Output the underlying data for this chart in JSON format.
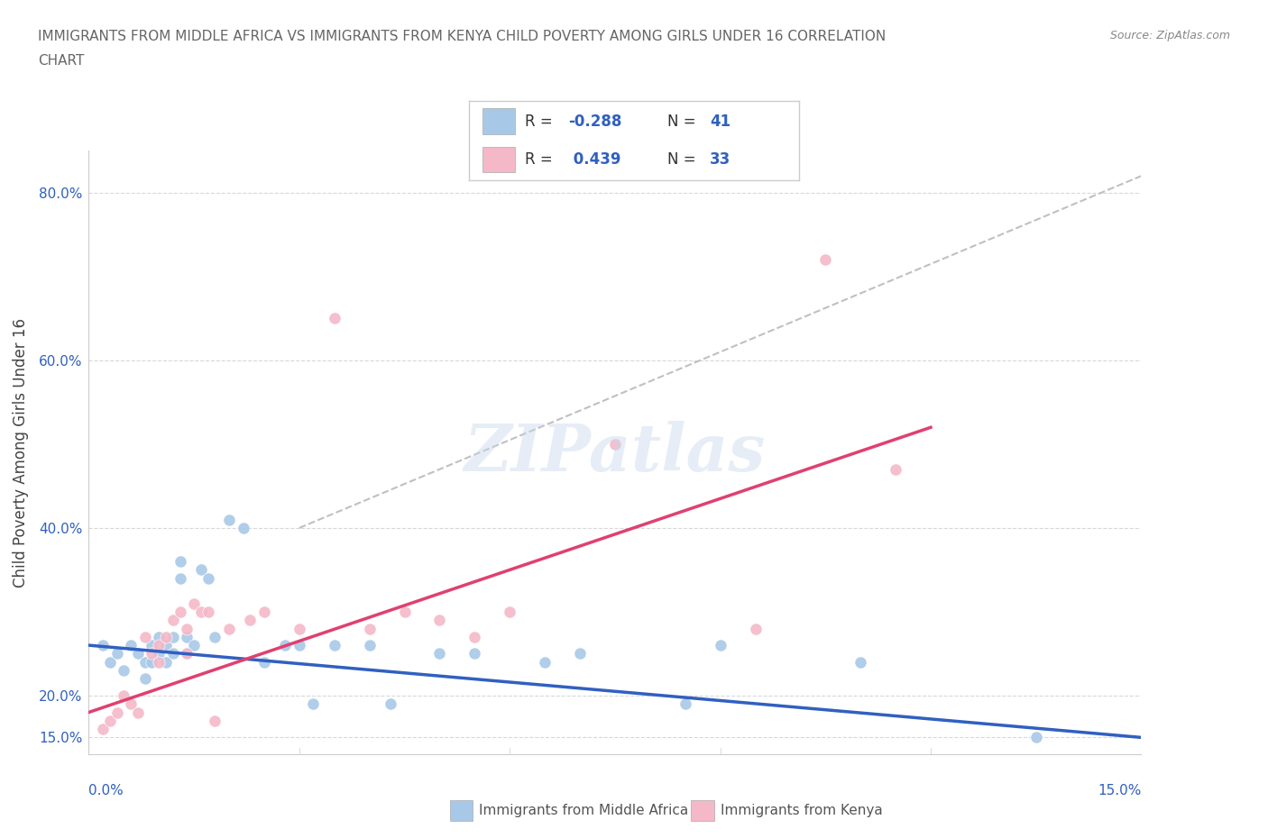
{
  "title_line1": "IMMIGRANTS FROM MIDDLE AFRICA VS IMMIGRANTS FROM KENYA CHILD POVERTY AMONG GIRLS UNDER 16 CORRELATION",
  "title_line2": "CHART",
  "source": "Source: ZipAtlas.com",
  "ylabel": "Child Poverty Among Girls Under 16",
  "xlim": [
    0.0,
    15.0
  ],
  "ylim": [
    13.0,
    85.0
  ],
  "blue_color": "#a8c8e8",
  "pink_color": "#f4b8c8",
  "blue_line_color": "#3060c0",
  "pink_line_color": "#e04070",
  "gray_dash_color": "#c0c0c0",
  "grid_color": "#d8d8d8",
  "R_blue": -0.288,
  "N_blue": 41,
  "R_pink": 0.439,
  "N_pink": 33,
  "legend_label_blue": "Immigrants from Middle Africa",
  "legend_label_pink": "Immigrants from Kenya",
  "watermark": "ZIPatlas",
  "blue_scatter_x": [
    0.2,
    0.3,
    0.4,
    0.5,
    0.6,
    0.7,
    0.8,
    0.8,
    0.9,
    0.9,
    1.0,
    1.0,
    1.1,
    1.1,
    1.2,
    1.2,
    1.3,
    1.3,
    1.4,
    1.4,
    1.5,
    1.6,
    1.7,
    1.8,
    2.0,
    2.2,
    2.5,
    2.8,
    3.0,
    3.2,
    3.5,
    4.0,
    4.3,
    5.0,
    5.5,
    6.5,
    7.0,
    8.5,
    9.0,
    11.0,
    13.5
  ],
  "blue_scatter_y": [
    26,
    24,
    25,
    23,
    26,
    25,
    24,
    22,
    26,
    24,
    27,
    25,
    26,
    24,
    27,
    25,
    36,
    34,
    27,
    25,
    26,
    35,
    34,
    27,
    41,
    40,
    24,
    26,
    26,
    19,
    26,
    26,
    19,
    25,
    25,
    24,
    25,
    19,
    26,
    24,
    15
  ],
  "pink_scatter_x": [
    0.2,
    0.3,
    0.4,
    0.5,
    0.6,
    0.7,
    0.8,
    0.9,
    1.0,
    1.0,
    1.1,
    1.2,
    1.3,
    1.4,
    1.4,
    1.5,
    1.6,
    1.7,
    1.8,
    2.0,
    2.3,
    2.5,
    3.0,
    3.5,
    4.0,
    4.5,
    5.0,
    5.5,
    6.0,
    7.5,
    9.5,
    10.5,
    11.5
  ],
  "pink_scatter_y": [
    16,
    17,
    18,
    20,
    19,
    18,
    27,
    25,
    26,
    24,
    27,
    29,
    30,
    28,
    25,
    31,
    30,
    30,
    17,
    28,
    29,
    30,
    28,
    65,
    28,
    30,
    29,
    27,
    30,
    50,
    28,
    72,
    47
  ],
  "blue_line_x0": 0.0,
  "blue_line_y0": 26.0,
  "blue_line_x1": 15.0,
  "blue_line_y1": 15.0,
  "pink_line_x0": 0.0,
  "pink_line_y0": 18.0,
  "pink_line_x1": 12.0,
  "pink_line_y1": 52.0,
  "gray_line_x0": 3.0,
  "gray_line_y0": 40.0,
  "gray_line_x1": 15.0,
  "gray_line_y1": 82.0,
  "ytick_vals": [
    15.0,
    20.0,
    40.0,
    60.0,
    80.0
  ],
  "ytick_labels": [
    "15.0%",
    "20.0%",
    "40.0%",
    "60.0%",
    "80.0%"
  ],
  "title_fontsize": 11,
  "source_fontsize": 9,
  "tick_fontsize": 11,
  "ylabel_fontsize": 12,
  "legend_fontsize": 13,
  "watermark_fontsize": 52
}
